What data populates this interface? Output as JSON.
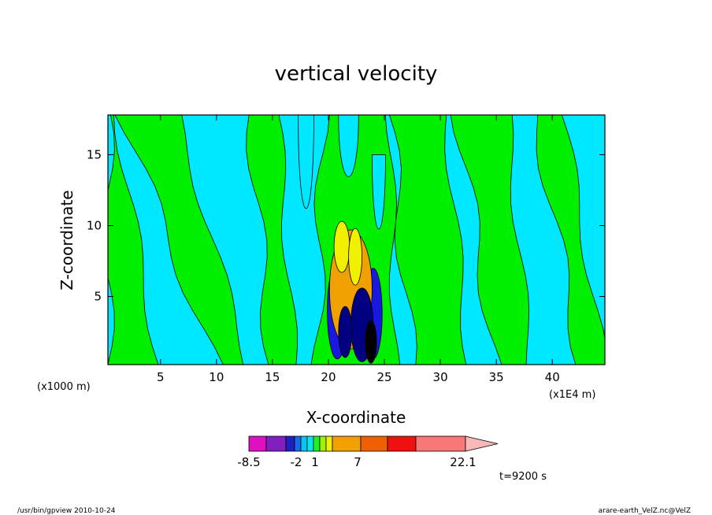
{
  "chart_data": {
    "type": "heatmap",
    "title": "vertical velocity",
    "xlabel": "X-coordinate",
    "ylabel": "Z-coordinate",
    "x_unit_left": "(x1000 m)",
    "x_unit_right": "(x1E4 m)",
    "xlim": [
      0.3,
      44.7
    ],
    "ylim": [
      0.2,
      17.8
    ],
    "x_ticks": [
      5,
      10,
      15,
      20,
      25,
      30,
      35,
      40
    ],
    "y_ticks": [
      5,
      10,
      15
    ],
    "colorbar": {
      "labels": [
        {
          "value": -8.5,
          "text": "-8.5"
        },
        {
          "value": -2,
          "text": "-2"
        },
        {
          "value": 1,
          "text": "1"
        },
        {
          "value": 7,
          "text": "7"
        },
        {
          "value": 22.1,
          "text": "22.1"
        }
      ],
      "colors": [
        "#e010c0",
        "#8020c0",
        "#2020c0",
        "#1868f0",
        "#00c8f0",
        "#00e8f0",
        "#20f020",
        "#a0f000",
        "#f0f000",
        "#f0a000",
        "#f06000",
        "#f01010",
        "#f87878",
        "#f8b8b8"
      ]
    },
    "levels_colors": {
      "weak_positive": "#00f000",
      "weak_negative": "#00e8ff",
      "moderate_positive": "#f0a000",
      "strong_positive": "#f0f000",
      "strong_negative": "#000080",
      "negative": "#1818e0"
    },
    "time_label": "t=9200 s"
  },
  "footer": {
    "left": "/usr/bin/gpview   2010-10-24",
    "right": "arare-earth_VelZ.nc@VelZ"
  }
}
